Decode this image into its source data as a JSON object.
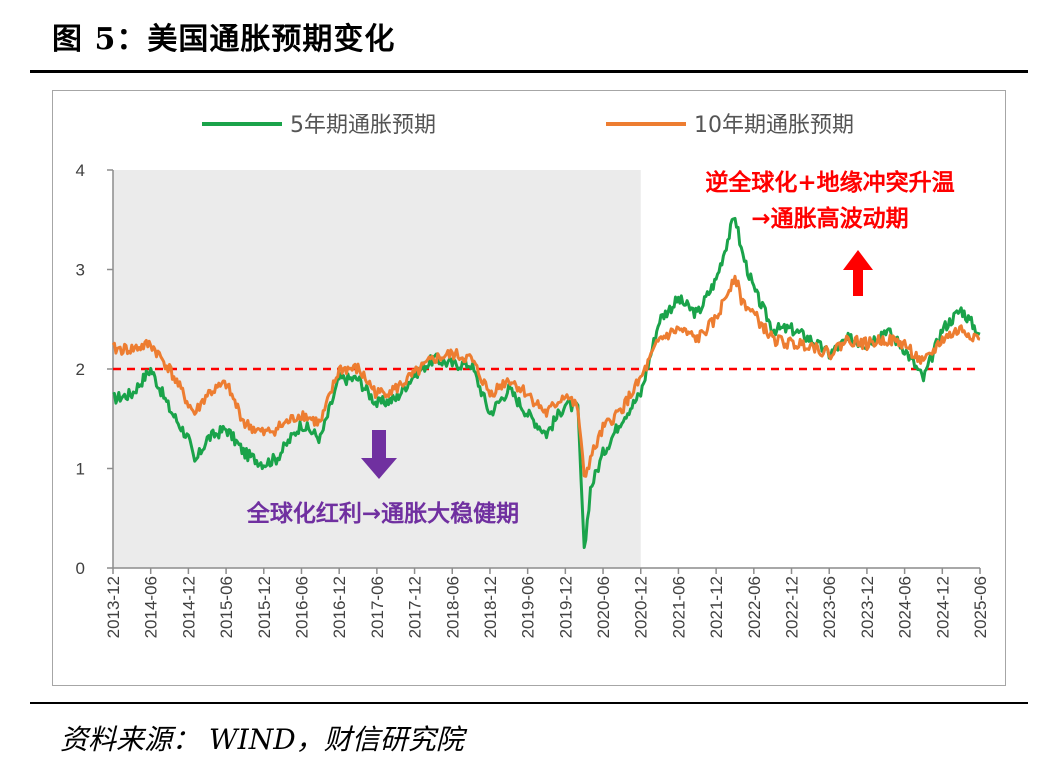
{
  "page": {
    "title": "图 5：美国通胀预期变化",
    "source": "资料来源：  WIND，财信研究院"
  },
  "chart_data": {
    "type": "line",
    "title": "图 5：美国通胀预期变化",
    "ylim": [
      0,
      4
    ],
    "yticks": [
      "0",
      "1",
      "2",
      "3",
      "4"
    ],
    "x_tick_labels": [
      "2013-12",
      "2014-06",
      "2014-12",
      "2015-06",
      "2015-12",
      "2016-06",
      "2016-12",
      "2017-06",
      "2017-12",
      "2018-06",
      "2018-12",
      "2019-06",
      "2019-12",
      "2020-06",
      "2020-12",
      "2021-06",
      "2021-12",
      "2022-06",
      "2022-12",
      "2023-06",
      "2023-12",
      "2024-06",
      "2024-12",
      "2025-06"
    ],
    "legend": [
      "5年期通胀预期",
      "10年期通胀预期"
    ],
    "colors": {
      "five_year": "#1aa34a",
      "ten_year": "#ed7d31",
      "reference": "#ff0000",
      "shade": "#ebebeb",
      "purple": "#7030a0",
      "red_text": "#ff0000"
    },
    "reference_line": 2,
    "shaded_region": [
      "2013-12",
      "2020-12"
    ],
    "series": [
      {
        "name": "5年期通胀预期",
        "x": [
          "2013-12",
          "2014-03",
          "2014-06",
          "2014-09",
          "2014-12",
          "2015-01",
          "2015-03",
          "2015-06",
          "2015-09",
          "2015-12",
          "2016-02",
          "2016-06",
          "2016-09",
          "2016-12",
          "2017-03",
          "2017-06",
          "2017-09",
          "2017-12",
          "2018-03",
          "2018-06",
          "2018-09",
          "2018-12",
          "2019-03",
          "2019-06",
          "2019-09",
          "2019-12",
          "2020-02",
          "2020-03",
          "2020-04",
          "2020-06",
          "2020-09",
          "2020-12",
          "2021-03",
          "2021-06",
          "2021-09",
          "2021-12",
          "2022-03",
          "2022-04",
          "2022-06",
          "2022-09",
          "2022-12",
          "2023-03",
          "2023-06",
          "2023-09",
          "2023-12",
          "2024-03",
          "2024-06",
          "2024-09",
          "2024-12",
          "2025-03",
          "2025-06"
        ],
        "values": [
          1.7,
          1.75,
          2.0,
          1.6,
          1.3,
          1.05,
          1.3,
          1.4,
          1.15,
          1.05,
          1.1,
          1.45,
          1.3,
          1.9,
          1.9,
          1.65,
          1.7,
          1.95,
          2.1,
          2.05,
          2.05,
          1.55,
          1.8,
          1.55,
          1.35,
          1.65,
          1.6,
          0.15,
          0.8,
          1.15,
          1.5,
          1.75,
          2.5,
          2.7,
          2.55,
          2.9,
          3.55,
          3.2,
          2.8,
          2.4,
          2.4,
          2.3,
          2.15,
          2.3,
          2.25,
          2.4,
          2.2,
          1.9,
          2.4,
          2.6,
          2.35
        ]
      },
      {
        "name": "10年期通胀预期",
        "x": [
          "2013-12",
          "2014-03",
          "2014-06",
          "2014-09",
          "2014-12",
          "2015-01",
          "2015-03",
          "2015-06",
          "2015-09",
          "2015-12",
          "2016-02",
          "2016-06",
          "2016-09",
          "2016-12",
          "2017-03",
          "2017-06",
          "2017-09",
          "2017-12",
          "2018-03",
          "2018-06",
          "2018-09",
          "2018-12",
          "2019-03",
          "2019-06",
          "2019-09",
          "2019-12",
          "2020-02",
          "2020-03",
          "2020-04",
          "2020-06",
          "2020-09",
          "2020-12",
          "2021-03",
          "2021-06",
          "2021-09",
          "2021-12",
          "2022-03",
          "2022-04",
          "2022-06",
          "2022-09",
          "2022-12",
          "2023-03",
          "2023-06",
          "2023-09",
          "2023-12",
          "2024-03",
          "2024-06",
          "2024-09",
          "2024-12",
          "2025-03",
          "2025-06"
        ],
        "values": [
          2.2,
          2.2,
          2.25,
          2.0,
          1.65,
          1.55,
          1.75,
          1.85,
          1.45,
          1.35,
          1.4,
          1.55,
          1.45,
          2.0,
          2.0,
          1.75,
          1.8,
          1.95,
          2.1,
          2.15,
          2.1,
          1.75,
          1.9,
          1.75,
          1.55,
          1.75,
          1.6,
          0.9,
          1.1,
          1.4,
          1.6,
          1.9,
          2.3,
          2.4,
          2.3,
          2.5,
          2.95,
          2.7,
          2.55,
          2.3,
          2.25,
          2.25,
          2.15,
          2.3,
          2.25,
          2.3,
          2.25,
          2.05,
          2.3,
          2.4,
          2.3
        ]
      }
    ],
    "annotations": {
      "top_right_line1": "逆全球化+地缘冲突升温",
      "top_right_line2": "→通胀高波动期",
      "bottom_left": "全球化红利→通胀大稳健期"
    }
  }
}
